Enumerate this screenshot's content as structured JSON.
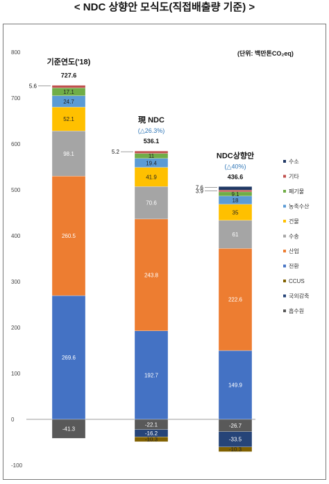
{
  "page": {
    "title": "< NDC 상향안 모식도(직접배출량 기준) >"
  },
  "chart_data": {
    "type": "bar",
    "stacked": true,
    "unit_note": "(단위: 백만톤CO₂eq)",
    "ylim": [
      -100,
      800
    ],
    "yticks": [
      -100,
      0,
      100,
      200,
      300,
      400,
      500,
      600,
      700,
      800
    ],
    "grid": false,
    "legend_position": "right",
    "categories": [
      {
        "title": "기준연도('18)",
        "subtitle": "",
        "total": "727.6"
      },
      {
        "title": "現 NDC",
        "subtitle": "(△26.3%)",
        "total": "536.1"
      },
      {
        "title": "NDC상향안",
        "subtitle": "(△40%)",
        "total": "436.6"
      }
    ],
    "series": [
      {
        "name": "전환",
        "color": "#4472c4",
        "values": [
          269.6,
          192.7,
          149.9
        ]
      },
      {
        "name": "산업",
        "color": "#ed7d31",
        "values": [
          260.5,
          243.8,
          222.6
        ]
      },
      {
        "name": "수송",
        "color": "#a5a5a5",
        "values": [
          98.1,
          70.6,
          61
        ]
      },
      {
        "name": "건물",
        "color": "#ffc000",
        "values": [
          52.1,
          41.9,
          35
        ]
      },
      {
        "name": "농축수산",
        "color": "#5b9bd5",
        "values": [
          24.7,
          19.4,
          18
        ]
      },
      {
        "name": "폐기물",
        "color": "#70ad47",
        "values": [
          17.1,
          11,
          9.1
        ]
      },
      {
        "name": "기타",
        "color": "#c0504d",
        "values": [
          5.6,
          5.2,
          3.9
        ]
      },
      {
        "name": "수소",
        "color": "#1f3864",
        "values": [
          0,
          0,
          7.6
        ]
      },
      {
        "name": "흡수원",
        "color": "#595959",
        "values": [
          -41.3,
          -22.1,
          -26.7
        ]
      },
      {
        "name": "국외감축",
        "color": "#264478",
        "values": [
          0,
          -16.2,
          -33.5
        ]
      },
      {
        "name": "CCUS",
        "color": "#806000",
        "values": [
          0,
          -10.3,
          -10.3
        ]
      }
    ],
    "legend_order": [
      "수소",
      "기타",
      "폐기물",
      "농축수산",
      "건물",
      "수송",
      "산업",
      "전환",
      "CCUS",
      "국외감축",
      "흡수원"
    ],
    "accent_colors": {
      "subtitle": "#2e75b6"
    }
  }
}
